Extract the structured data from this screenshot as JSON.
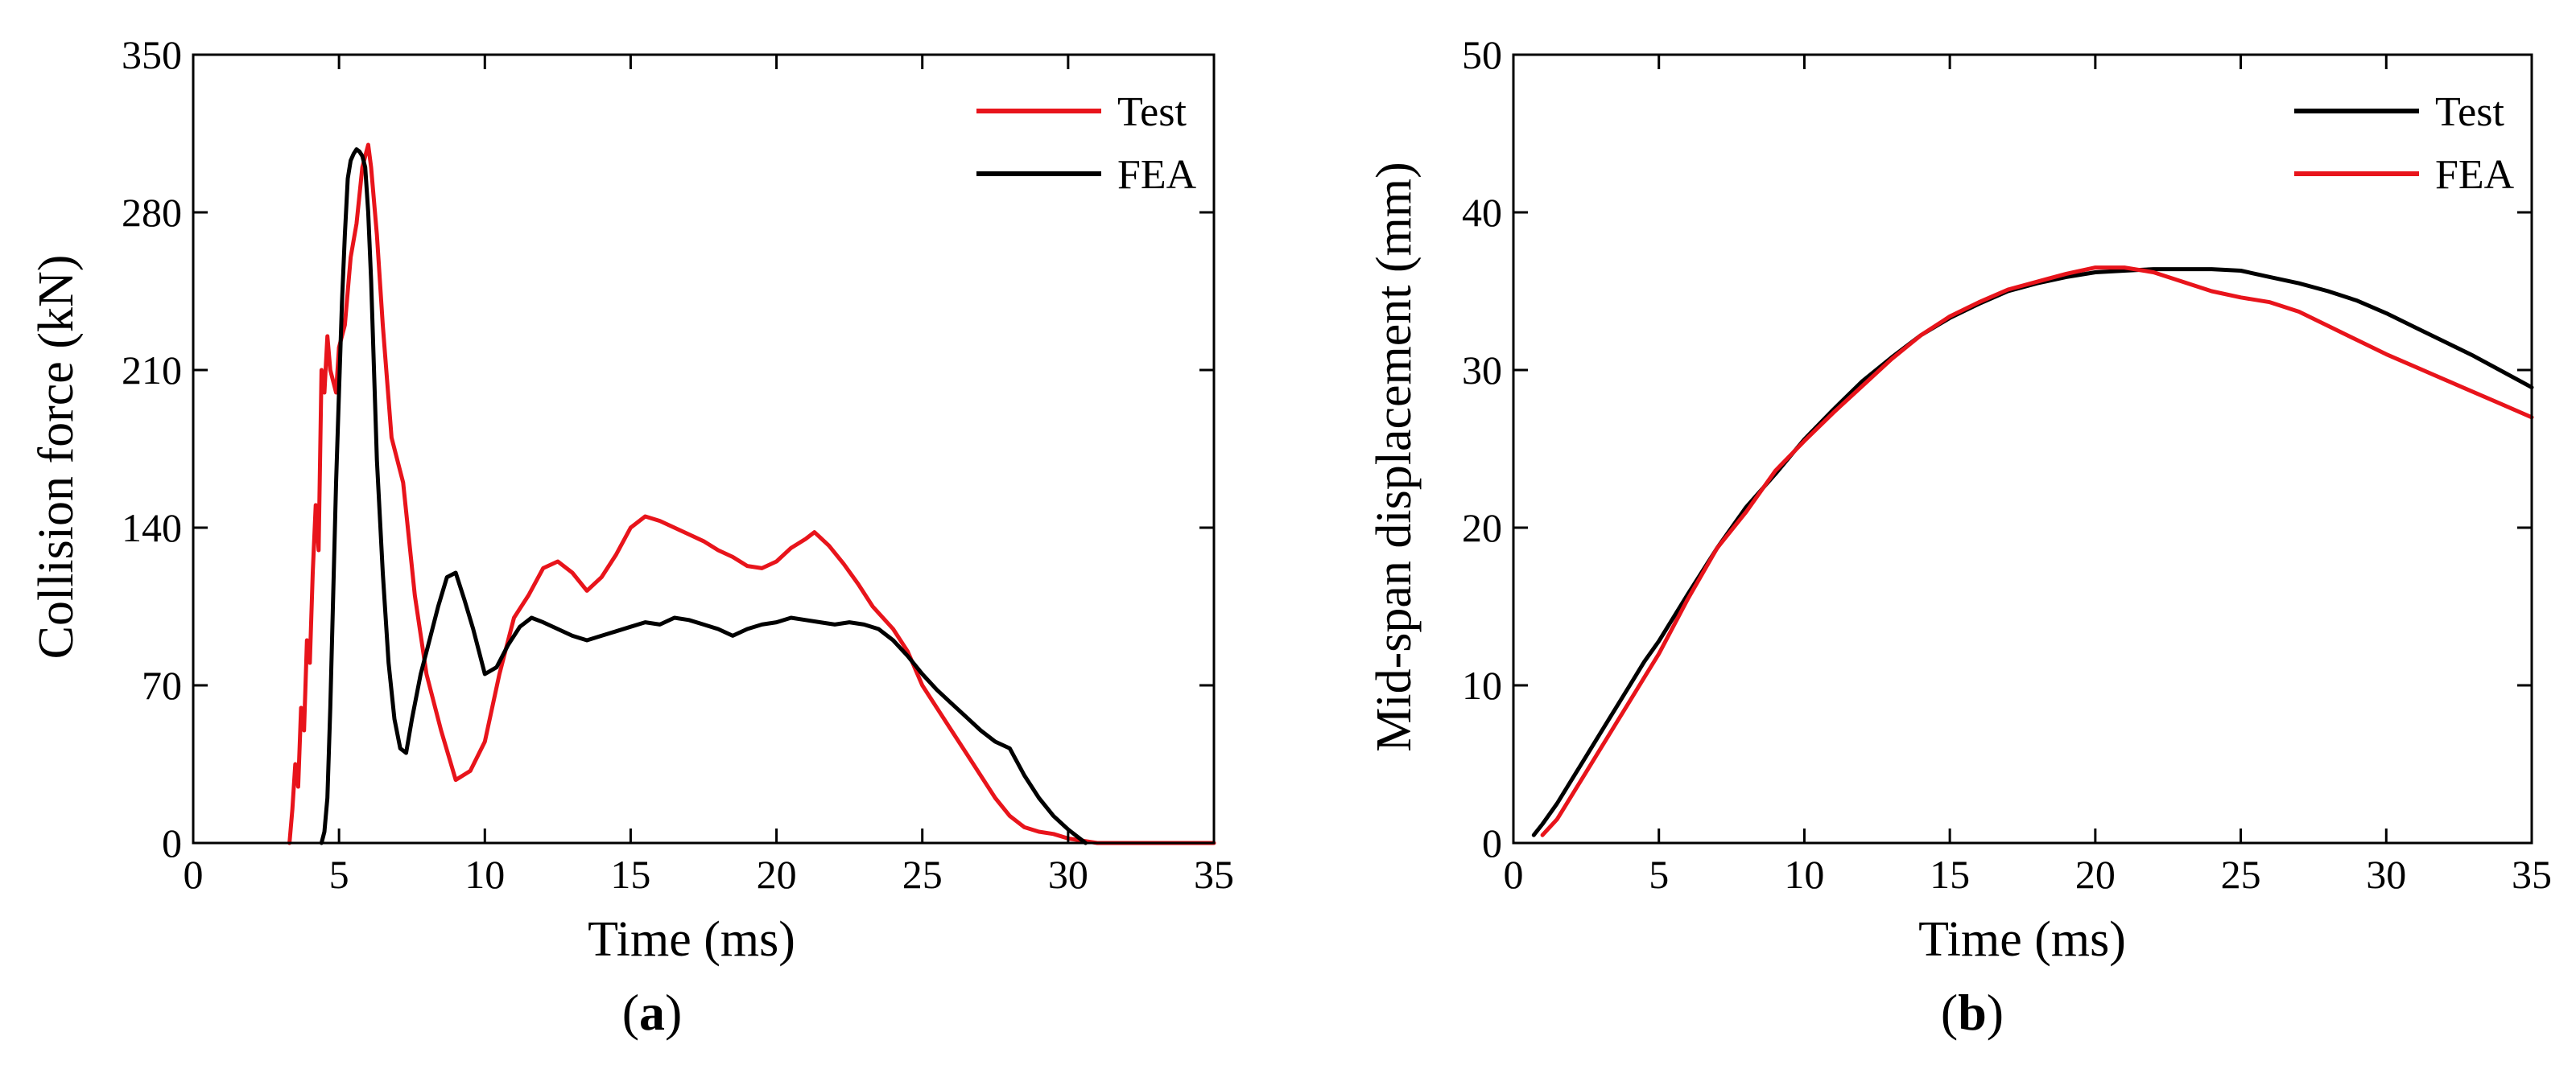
{
  "chart_data": [
    {
      "type": "line",
      "panel_label": "a",
      "xlabel": "Time (ms)",
      "ylabel": "Collision force (kN)",
      "xlim": [
        0,
        35
      ],
      "ylim": [
        0,
        350
      ],
      "xticks": [
        0,
        5,
        10,
        15,
        20,
        25,
        30,
        35
      ],
      "yticks": [
        0,
        70,
        140,
        210,
        280,
        350
      ],
      "legend_position": "top-right",
      "series": [
        {
          "name": "Test",
          "color": "#e8141b",
          "x": [
            3.3,
            3.4,
            3.5,
            3.6,
            3.7,
            3.8,
            3.9,
            4.0,
            4.1,
            4.2,
            4.3,
            4.4,
            4.5,
            4.6,
            4.7,
            4.8,
            4.9,
            5.0,
            5.2,
            5.4,
            5.6,
            5.8,
            6.0,
            6.1,
            6.3,
            6.5,
            6.8,
            7.2,
            7.6,
            8.0,
            8.5,
            9.0,
            9.5,
            10.0,
            10.5,
            11.0,
            11.5,
            12.0,
            12.5,
            13.0,
            13.5,
            14.0,
            14.5,
            15.0,
            15.5,
            16.0,
            16.5,
            17.0,
            17.5,
            18.0,
            18.5,
            19.0,
            19.5,
            20.0,
            20.5,
            21.0,
            21.3,
            21.8,
            22.3,
            22.8,
            23.3,
            24.0,
            24.5,
            25.0,
            25.5,
            26.0,
            26.5,
            27.0,
            27.5,
            28.0,
            28.5,
            29.0,
            29.5,
            30.0,
            30.5,
            31.0,
            31.5,
            32.0,
            33.0,
            34.0,
            35.0
          ],
          "y": [
            0,
            15,
            35,
            25,
            60,
            50,
            90,
            80,
            120,
            150,
            130,
            210,
            200,
            225,
            210,
            205,
            200,
            220,
            230,
            260,
            275,
            300,
            310,
            300,
            270,
            230,
            180,
            160,
            110,
            75,
            50,
            28,
            32,
            45,
            75,
            100,
            110,
            122,
            125,
            120,
            112,
            118,
            128,
            140,
            145,
            143,
            140,
            137,
            134,
            130,
            127,
            123,
            122,
            125,
            131,
            135,
            138,
            132,
            124,
            115,
            105,
            95,
            85,
            70,
            60,
            50,
            40,
            30,
            20,
            12,
            7,
            5,
            4,
            2,
            1,
            0,
            0,
            0,
            0,
            0,
            0
          ]
        },
        {
          "name": "FEA",
          "color": "#000000",
          "x": [
            4.4,
            4.5,
            4.6,
            4.7,
            4.8,
            4.9,
            5.0,
            5.1,
            5.2,
            5.3,
            5.4,
            5.5,
            5.6,
            5.7,
            5.8,
            5.9,
            6.0,
            6.1,
            6.2,
            6.3,
            6.5,
            6.7,
            6.9,
            7.1,
            7.3,
            7.5,
            7.8,
            8.1,
            8.4,
            8.7,
            9.0,
            9.3,
            9.6,
            10.0,
            10.4,
            10.8,
            11.2,
            11.6,
            12.0,
            12.5,
            13.0,
            13.5,
            14.0,
            14.5,
            15.0,
            15.5,
            16.0,
            16.5,
            17.0,
            17.5,
            18.0,
            18.5,
            19.0,
            19.5,
            20.0,
            20.5,
            21.0,
            21.5,
            22.0,
            22.5,
            23.0,
            23.5,
            24.0,
            24.5,
            25.0,
            25.5,
            26.0,
            26.5,
            27.0,
            27.5,
            28.0,
            28.5,
            29.0,
            29.5,
            30.0,
            30.3,
            30.6
          ],
          "y": [
            0,
            5,
            20,
            60,
            110,
            160,
            200,
            240,
            270,
            295,
            303,
            306,
            308,
            307,
            305,
            300,
            280,
            250,
            210,
            170,
            120,
            80,
            55,
            42,
            40,
            55,
            75,
            90,
            105,
            118,
            120,
            108,
            95,
            75,
            78,
            88,
            96,
            100,
            98,
            95,
            92,
            90,
            92,
            94,
            96,
            98,
            97,
            100,
            99,
            97,
            95,
            92,
            95,
            97,
            98,
            100,
            99,
            98,
            97,
            98,
            97,
            95,
            90,
            83,
            75,
            68,
            62,
            56,
            50,
            45,
            42,
            30,
            20,
            12,
            6,
            3,
            0
          ]
        }
      ]
    },
    {
      "type": "line",
      "panel_label": "b",
      "xlabel": "Time (ms)",
      "ylabel": "Mid-span displacement (mm)",
      "xlim": [
        0,
        35
      ],
      "ylim": [
        0,
        50
      ],
      "xticks": [
        0,
        5,
        10,
        15,
        20,
        25,
        30,
        35
      ],
      "yticks": [
        0,
        10,
        20,
        30,
        40,
        50
      ],
      "legend_position": "top-right",
      "series": [
        {
          "name": "Test",
          "color": "#000000",
          "x": [
            0.7,
            1.0,
            1.5,
            2.0,
            2.5,
            3.0,
            3.5,
            4.0,
            4.5,
            5.0,
            6.0,
            7.0,
            8.0,
            9.0,
            10.0,
            11.0,
            12.0,
            13.0,
            14.0,
            15.0,
            16.0,
            17.0,
            18.0,
            19.0,
            20.0,
            21.0,
            22.0,
            23.0,
            24.0,
            25.0,
            26.0,
            27.0,
            28.0,
            29.0,
            30.0,
            31.0,
            32.0,
            33.0,
            34.0,
            35.0
          ],
          "y": [
            0.5,
            1.2,
            2.5,
            4.0,
            5.5,
            7.0,
            8.5,
            10.0,
            11.5,
            12.8,
            15.8,
            18.7,
            21.3,
            23.4,
            25.6,
            27.5,
            29.3,
            30.8,
            32.2,
            33.3,
            34.2,
            35.0,
            35.5,
            35.9,
            36.2,
            36.3,
            36.4,
            36.4,
            36.4,
            36.3,
            35.9,
            35.5,
            35.0,
            34.4,
            33.6,
            32.7,
            31.8,
            30.9,
            29.9,
            28.9
          ]
        },
        {
          "name": "FEA",
          "color": "#e8141b",
          "x": [
            1.0,
            1.5,
            2.0,
            2.5,
            3.0,
            3.5,
            4.0,
            4.5,
            5.0,
            6.0,
            7.0,
            8.0,
            9.0,
            10.0,
            11.0,
            12.0,
            13.0,
            14.0,
            15.0,
            16.0,
            17.0,
            18.0,
            19.0,
            20.0,
            21.0,
            22.0,
            23.0,
            24.0,
            25.0,
            26.0,
            27.0,
            28.0,
            29.0,
            30.0,
            31.0,
            32.0,
            33.0,
            34.0,
            35.0
          ],
          "y": [
            0.5,
            1.5,
            3.0,
            4.5,
            6.0,
            7.5,
            9.0,
            10.5,
            12.0,
            15.5,
            18.7,
            21.0,
            23.6,
            25.5,
            27.3,
            29.0,
            30.7,
            32.2,
            33.4,
            34.3,
            35.1,
            35.6,
            36.1,
            36.5,
            36.5,
            36.2,
            35.6,
            35.0,
            34.6,
            34.3,
            33.7,
            32.8,
            31.9,
            31.0,
            30.2,
            29.4,
            28.6,
            27.8,
            27.0
          ]
        }
      ]
    }
  ]
}
